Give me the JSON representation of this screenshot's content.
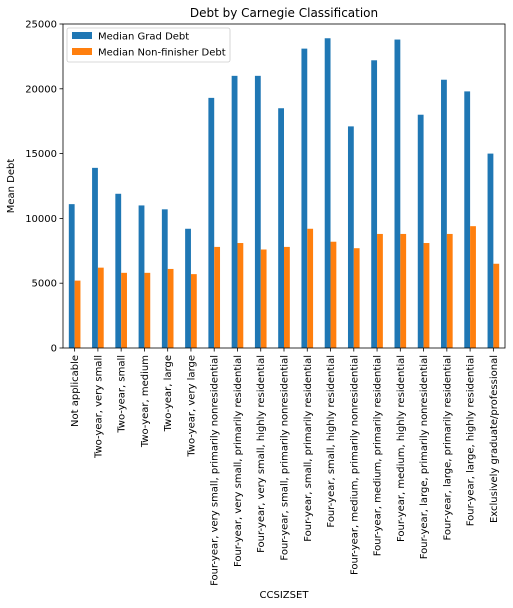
{
  "chart_data": {
    "type": "bar",
    "title": "Debt by Carnegie Classification",
    "xlabel": "CCSIZSET",
    "ylabel": "Mean Debt",
    "ylim": [
      0,
      25000
    ],
    "yticks": [
      0,
      5000,
      10000,
      15000,
      20000,
      25000
    ],
    "grid": false,
    "legend_position": "upper-left",
    "categories": [
      "Not applicable",
      "Two-year, very small",
      "Two-year, small",
      "Two-year, medium",
      "Two-year, large",
      "Two-year, very large",
      "Four-year, very small, primarily nonresidential",
      "Four-year, very small, primarily residential",
      "Four-year, very small, highly residential",
      "Four-year, small, primarily nonresidential",
      "Four-year, small, primarily residential",
      "Four-year, small, highly residential",
      "Four-year, medium, primarily nonresidential",
      "Four-year, medium, primarily residential",
      "Four-year, medium, highly residential",
      "Four-year, large, primarily nonresidential",
      "Four-year, large, primarily residential",
      "Four-year, large, highly residential",
      "Exclusively graduate/professional"
    ],
    "series": [
      {
        "name": "Median Grad Debt",
        "color": "#1f77b4",
        "values": [
          11100,
          13900,
          11900,
          11000,
          10700,
          9200,
          19300,
          21000,
          21000,
          18500,
          23100,
          23900,
          17100,
          22200,
          23800,
          18000,
          20700,
          19800,
          15000
        ]
      },
      {
        "name": "Median Non-finisher Debt",
        "color": "#ff7f0e",
        "values": [
          5200,
          6200,
          5800,
          5800,
          6100,
          5700,
          7800,
          8100,
          7600,
          7800,
          9200,
          8200,
          7700,
          8800,
          8800,
          8100,
          8800,
          9400,
          6500
        ]
      }
    ]
  }
}
